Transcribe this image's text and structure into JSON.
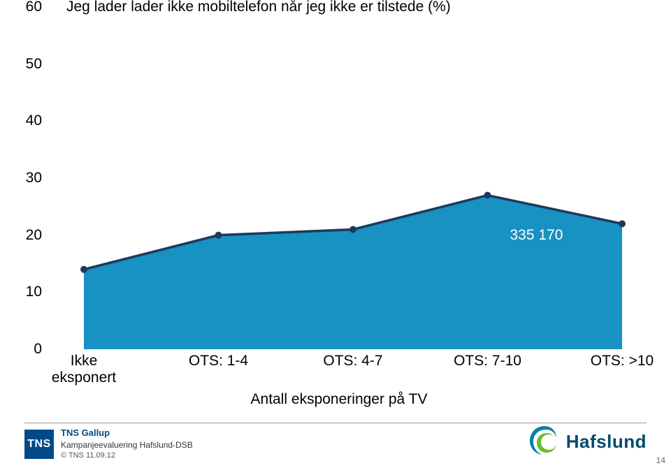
{
  "chart": {
    "type": "area",
    "title": "Jeg lader lader ikke mobiltelefon når jeg ikke er tilstede (%)",
    "title_fontsize": 21,
    "categories": [
      "Ikke\neksponert",
      "OTS: 1-4",
      "OTS: 4-7",
      "OTS: 7-10",
      "OTS: >10"
    ],
    "values": [
      14,
      20,
      21,
      27,
      22
    ],
    "line_color": "#1c3a5c",
    "fill_color": "#1891c3",
    "marker_color": "#1c3a5c",
    "marker_size": 5,
    "line_width": 3.5,
    "ylim": [
      0,
      60
    ],
    "ytick_step": 10,
    "yticks": [
      0,
      10,
      20,
      30,
      40,
      50,
      60
    ],
    "x_axis_title": "Antall eksponeringer på TV",
    "annotation": {
      "text": "335 170",
      "category_index": 3.4,
      "y": 20,
      "color": "#ffffff",
      "fontsize": 21
    },
    "background_color": "#ffffff",
    "label_fontsize": 21,
    "label_color": "#000000"
  },
  "footer": {
    "logo_text": "TNS",
    "brand": "TNS Gallup",
    "subtitle": "Kampanjeevaluering Hafslund-DSB",
    "copyright": "© TNS   11.09.12",
    "partner_brand": "Hafslund",
    "page_number": "14"
  }
}
